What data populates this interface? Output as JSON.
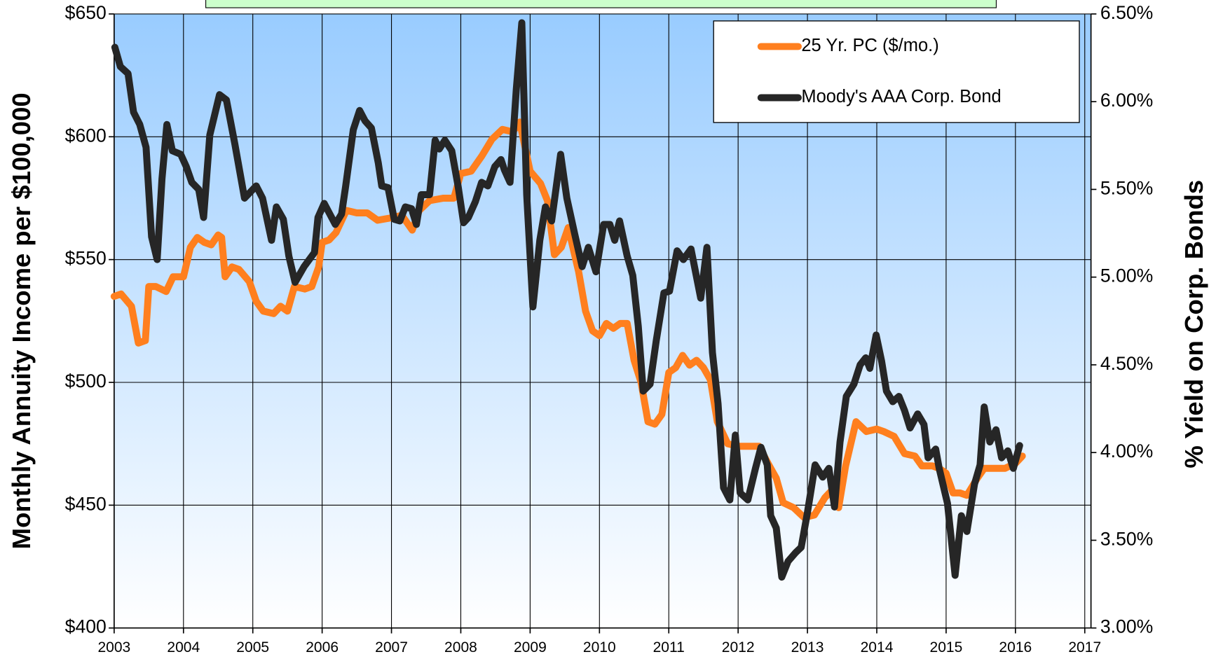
{
  "chart_data": {
    "type": "line",
    "ylabel": "Monthly Annuity Income per $100,000",
    "y2label": "% Yield on Corp. Bonds",
    "xlim": [
      2003,
      2017
    ],
    "xticks": [
      2003,
      2004,
      2005,
      2006,
      2007,
      2008,
      2009,
      2010,
      2011,
      2012,
      2013,
      2014,
      2015,
      2016,
      2017
    ],
    "ylim": [
      400,
      650
    ],
    "yticks": [
      {
        "value": 400,
        "label": "$400"
      },
      {
        "value": 450,
        "label": "$450"
      },
      {
        "value": 500,
        "label": "$500"
      },
      {
        "value": 550,
        "label": "$550"
      },
      {
        "value": 600,
        "label": "$600"
      },
      {
        "value": 650,
        "label": "$650"
      }
    ],
    "y2lim": [
      3.0,
      6.5
    ],
    "y2ticks": [
      {
        "value": 3.0,
        "label": "3.00%"
      },
      {
        "value": 3.5,
        "label": "3.50%"
      },
      {
        "value": 4.0,
        "label": "4.00%"
      },
      {
        "value": 4.5,
        "label": "4.50%"
      },
      {
        "value": 5.0,
        "label": "5.00%"
      },
      {
        "value": 5.5,
        "label": "5.50%"
      },
      {
        "value": 6.0,
        "label": "6.00%"
      },
      {
        "value": 6.5,
        "label": "6.50%"
      }
    ],
    "grid": true,
    "legend": "upper right",
    "series": [
      {
        "name": "25 Yr. PC ($/mo.)",
        "color": "#ff7f1e",
        "axis": "y",
        "x": [
          2003.0,
          2003.1,
          2003.25,
          2003.35,
          2003.45,
          2003.5,
          2003.6,
          2003.75,
          2003.85,
          2004.0,
          2004.1,
          2004.2,
          2004.3,
          2004.4,
          2004.5,
          2004.55,
          2004.6,
          2004.7,
          2004.8,
          2004.95,
          2005.05,
          2005.15,
          2005.3,
          2005.4,
          2005.5,
          2005.6,
          2005.75,
          2005.85,
          2005.95,
          2006.0,
          2006.1,
          2006.2,
          2006.35,
          2006.5,
          2006.65,
          2006.8,
          2007.0,
          2007.15,
          2007.3,
          2007.4,
          2007.55,
          2007.75,
          2007.9,
          2008.0,
          2008.15,
          2008.3,
          2008.45,
          2008.6,
          2008.75,
          2008.85,
          2009.0,
          2009.15,
          2009.25,
          2009.35,
          2009.45,
          2009.55,
          2009.7,
          2009.8,
          2009.9,
          2010.0,
          2010.1,
          2010.2,
          2010.3,
          2010.4,
          2010.5,
          2010.6,
          2010.7,
          2010.8,
          2010.9,
          2011.0,
          2011.1,
          2011.2,
          2011.3,
          2011.4,
          2011.5,
          2011.6,
          2011.7,
          2011.85,
          2012.0,
          2012.2,
          2012.3,
          2012.45,
          2012.55,
          2012.65,
          2012.8,
          2012.95,
          2013.1,
          2013.25,
          2013.35,
          2013.45,
          2013.55,
          2013.7,
          2013.85,
          2014.0,
          2014.1,
          2014.25,
          2014.4,
          2014.55,
          2014.65,
          2014.8,
          2014.9,
          2015.0,
          2015.1,
          2015.2,
          2015.3,
          2015.45,
          2015.55,
          2015.7,
          2015.85,
          2016.0,
          2016.1
        ],
        "values": [
          535,
          536,
          531,
          516,
          517,
          539,
          539,
          537,
          543,
          543,
          555,
          559,
          557,
          556,
          560,
          559,
          543,
          547,
          546,
          541,
          533,
          529,
          528,
          531,
          529,
          539,
          538,
          539,
          547,
          557,
          558,
          561,
          570,
          569,
          569,
          566,
          567,
          568,
          562,
          570,
          574,
          575,
          575,
          585,
          586,
          592,
          599,
          603,
          602,
          606,
          586,
          581,
          574,
          552,
          555,
          563,
          545,
          529,
          521,
          519,
          524,
          522,
          524,
          524,
          509,
          500,
          484,
          483,
          487,
          504,
          506,
          511,
          507,
          509,
          506,
          501,
          484,
          475,
          474,
          474,
          474,
          466,
          461,
          451,
          449,
          445,
          446,
          453,
          456,
          449,
          466,
          484,
          480,
          481,
          480,
          478,
          471,
          470,
          466,
          466,
          465,
          463,
          455,
          455,
          454,
          461,
          465,
          465,
          465,
          467,
          470
        ]
      },
      {
        "name": "Moody's AAA Corp. Bond",
        "color": "#262626",
        "axis": "y2",
        "x": [
          2003.01,
          2003.09,
          2003.2,
          2003.28,
          2003.37,
          2003.46,
          2003.54,
          2003.62,
          2003.69,
          2003.76,
          2003.84,
          2003.96,
          2004.04,
          2004.12,
          2004.22,
          2004.29,
          2004.38,
          2004.52,
          2004.62,
          2004.74,
          2004.88,
          2005.05,
          2005.14,
          2005.27,
          2005.34,
          2005.44,
          2005.52,
          2005.61,
          2005.74,
          2005.89,
          2005.94,
          2006.03,
          2006.11,
          2006.19,
          2006.28,
          2006.34,
          2006.45,
          2006.54,
          2006.62,
          2006.71,
          2006.81,
          2006.86,
          2006.95,
          2007.04,
          2007.12,
          2007.2,
          2007.29,
          2007.36,
          2007.43,
          2007.55,
          2007.63,
          2007.69,
          2007.77,
          2007.87,
          2007.96,
          2008.04,
          2008.11,
          2008.21,
          2008.3,
          2008.39,
          2008.49,
          2008.58,
          2008.63,
          2008.71,
          2008.8,
          2008.88,
          2008.95,
          2009.04,
          2009.14,
          2009.22,
          2009.31,
          2009.44,
          2009.53,
          2009.64,
          2009.75,
          2009.84,
          2009.95,
          2010.06,
          2010.15,
          2010.22,
          2010.29,
          2010.4,
          2010.48,
          2010.56,
          2010.63,
          2010.73,
          2010.82,
          2010.93,
          2011.01,
          2011.12,
          2011.21,
          2011.32,
          2011.46,
          2011.55,
          2011.63,
          2011.71,
          2011.79,
          2011.88,
          2011.96,
          2012.03,
          2012.14,
          2012.25,
          2012.33,
          2012.42,
          2012.47,
          2012.55,
          2012.63,
          2012.72,
          2012.83,
          2012.91,
          2013.0,
          2013.11,
          2013.22,
          2013.31,
          2013.39,
          2013.47,
          2013.56,
          2013.67,
          2013.76,
          2013.84,
          2013.9,
          2013.99,
          2014.07,
          2014.14,
          2014.23,
          2014.32,
          2014.4,
          2014.48,
          2014.59,
          2014.68,
          2014.74,
          2014.85,
          2014.9,
          2015.02,
          2015.13,
          2015.22,
          2015.3,
          2015.41,
          2015.49,
          2015.55,
          2015.63,
          2015.72,
          2015.8,
          2015.89,
          2015.97,
          2016.06
        ],
        "values": [
          6.31,
          6.2,
          6.16,
          5.94,
          5.87,
          5.74,
          5.23,
          5.1,
          5.56,
          5.87,
          5.72,
          5.7,
          5.63,
          5.54,
          5.5,
          5.34,
          5.81,
          6.04,
          6.01,
          5.76,
          5.45,
          5.52,
          5.45,
          5.21,
          5.4,
          5.33,
          5.12,
          4.97,
          5.06,
          5.14,
          5.34,
          5.42,
          5.36,
          5.3,
          5.36,
          5.52,
          5.84,
          5.95,
          5.89,
          5.85,
          5.65,
          5.52,
          5.51,
          5.33,
          5.32,
          5.4,
          5.39,
          5.3,
          5.47,
          5.47,
          5.78,
          5.73,
          5.78,
          5.72,
          5.52,
          5.31,
          5.34,
          5.43,
          5.54,
          5.52,
          5.63,
          5.67,
          5.61,
          5.54,
          6.07,
          6.45,
          5.47,
          4.83,
          5.21,
          5.4,
          5.32,
          5.7,
          5.45,
          5.25,
          5.06,
          5.17,
          5.03,
          5.3,
          5.3,
          5.21,
          5.32,
          5.12,
          5.01,
          4.72,
          4.35,
          4.39,
          4.64,
          4.91,
          4.92,
          5.15,
          5.1,
          5.16,
          4.88,
          5.17,
          4.57,
          4.28,
          3.8,
          3.73,
          4.1,
          3.77,
          3.73,
          3.91,
          4.03,
          3.93,
          3.64,
          3.57,
          3.29,
          3.38,
          3.43,
          3.46,
          3.66,
          3.93,
          3.86,
          3.91,
          3.69,
          4.06,
          4.32,
          4.39,
          4.5,
          4.54,
          4.48,
          4.67,
          4.52,
          4.35,
          4.29,
          4.32,
          4.24,
          4.14,
          4.22,
          4.16,
          3.97,
          4.02,
          3.91,
          3.71,
          3.3,
          3.64,
          3.55,
          3.82,
          3.93,
          4.26,
          4.06,
          4.13,
          3.97,
          4.01,
          3.91,
          4.04
        ]
      }
    ]
  }
}
